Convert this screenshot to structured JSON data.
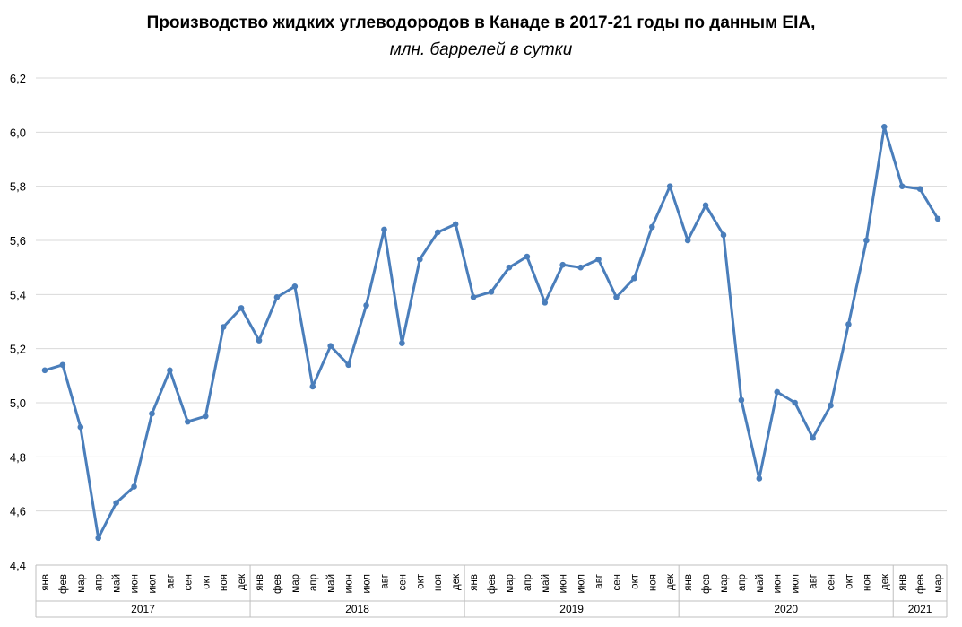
{
  "chart_data": {
    "type": "line",
    "title": "Производство жидких углеводородов в Канаде в 2017-21 годы по данным EIA,",
    "subtitle": "млн. баррелей в сутки",
    "xlabel": "",
    "ylabel": "",
    "ylim": [
      4.4,
      6.2
    ],
    "yticks": [
      "4,4",
      "4,6",
      "4,8",
      "5,0",
      "5,2",
      "5,4",
      "5,6",
      "5,8",
      "6,0",
      "6,2"
    ],
    "grid": true,
    "legend": "none",
    "colors": {
      "line": "#4a7ebb",
      "grid": "#d9d9d9",
      "axis": "#bfbfbf"
    },
    "categories": [
      "янв",
      "фев",
      "мар",
      "апр",
      "май",
      "июн",
      "июл",
      "авг",
      "сен",
      "окт",
      "ноя",
      "дек",
      "янв",
      "фев",
      "мар",
      "апр",
      "май",
      "июн",
      "июл",
      "авг",
      "сен",
      "окт",
      "ноя",
      "дек",
      "янв",
      "фев",
      "мар",
      "апр",
      "май",
      "июн",
      "июл",
      "авг",
      "сен",
      "окт",
      "ноя",
      "дек",
      "янв",
      "фев",
      "мар",
      "апр",
      "май",
      "июн",
      "июл",
      "авг",
      "сен",
      "окт",
      "ноя",
      "дек",
      "янв",
      "фев",
      "мар"
    ],
    "years": [
      {
        "label": "2017",
        "months": 12
      },
      {
        "label": "2018",
        "months": 12
      },
      {
        "label": "2019",
        "months": 12
      },
      {
        "label": "2020",
        "months": 12
      },
      {
        "label": "2021",
        "months": 3
      }
    ],
    "series": [
      {
        "values": [
          5.12,
          5.14,
          4.91,
          4.5,
          4.63,
          4.69,
          4.96,
          5.12,
          4.93,
          4.95,
          5.28,
          5.35,
          5.23,
          5.39,
          5.43,
          5.06,
          5.21,
          5.14,
          5.36,
          5.64,
          5.22,
          5.53,
          5.63,
          5.66,
          5.39,
          5.41,
          5.5,
          5.54,
          5.37,
          5.51,
          5.5,
          5.53,
          5.39,
          5.46,
          5.65,
          5.8,
          5.6,
          5.73,
          5.62,
          5.01,
          4.72,
          5.04,
          5.0,
          4.87,
          4.99,
          5.29,
          5.6,
          6.02,
          5.8,
          5.79,
          5.68
        ]
      }
    ]
  }
}
